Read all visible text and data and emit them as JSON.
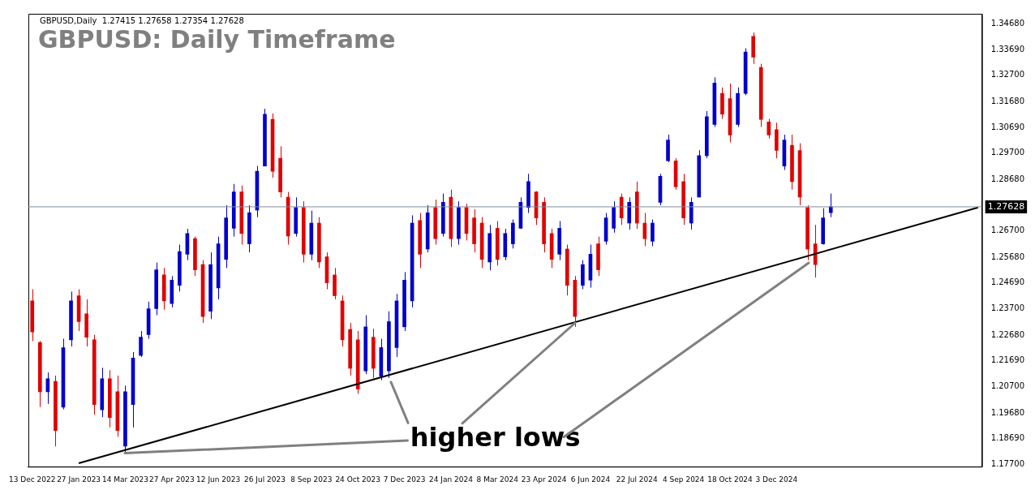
{
  "chart_data": {
    "type": "candlestick",
    "title": "GBPUSD: Daily Timeframe",
    "subtitle": "GBPUSD,Daily  1.27415 1.27658 1.27354 1.27628",
    "annotations": [
      {
        "text": "higher lows",
        "x": "14 Mar 2023",
        "y": 1.1812
      }
    ],
    "categories": [
      "13 Dec 2022",
      null,
      null,
      null,
      null,
      null,
      "27 Jan 2023",
      null,
      null,
      null,
      null,
      null,
      "14 Mar 2023",
      null,
      null,
      null,
      null,
      null,
      "27 Apr 2023",
      null,
      null,
      null,
      null,
      null,
      "12 Jun 2023",
      null,
      null,
      null,
      null,
      null,
      "26 Jul 2023",
      null,
      null,
      null,
      null,
      null,
      "8 Sep 2023",
      null,
      null,
      null,
      null,
      null,
      "24 Oct 2023",
      null,
      null,
      null,
      null,
      null,
      "7 Dec 2023",
      null,
      null,
      null,
      null,
      null,
      "24 Jan 2024",
      null,
      null,
      null,
      null,
      null,
      "8 Mar 2024",
      null,
      null,
      null,
      null,
      null,
      "23 Apr 2024",
      null,
      null,
      null,
      null,
      null,
      "6 Jun 2024",
      null,
      null,
      null,
      null,
      null,
      "22 Jul 2024",
      null,
      null,
      null,
      null,
      null,
      "4 Sep 2024",
      null,
      null,
      null,
      null,
      null,
      "18 Oct 2024",
      null,
      null,
      null,
      null,
      null,
      "3 Dec 2024",
      null,
      null,
      null,
      null,
      null,
      null,
      null,
      null,
      null,
      null,
      null,
      null,
      null,
      null,
      null,
      null,
      null,
      null,
      null,
      null,
      null,
      null,
      null,
      null,
      null,
      null
    ],
    "series": [
      {
        "type": "candlestick",
        "ohlc": [
          [
            1.24,
            1.2445,
            1.2245,
            1.228
          ],
          [
            1.224,
            1.2245,
            1.1991,
            1.205
          ],
          [
            1.205,
            1.2124,
            1.2003,
            1.21
          ],
          [
            1.209,
            1.2112,
            1.1839,
            1.19
          ],
          [
            1.199,
            1.2254,
            1.1982,
            1.222
          ],
          [
            1.225,
            1.2436,
            1.2224,
            1.24
          ],
          [
            1.242,
            1.2445,
            1.2284,
            1.232
          ],
          [
            1.235,
            1.2406,
            1.2224,
            1.226
          ],
          [
            1.225,
            1.2269,
            1.1961,
            1.2
          ],
          [
            1.198,
            1.2142,
            1.1952,
            1.21
          ],
          [
            1.21,
            1.2133,
            1.1912,
            1.195
          ],
          [
            1.205,
            1.2112,
            1.1876,
            1.19
          ],
          [
            1.184,
            1.2073,
            1.1812,
            1.205
          ],
          [
            1.2,
            1.2203,
            1.1912,
            1.218
          ],
          [
            1.219,
            1.2284,
            1.2184,
            1.226
          ],
          [
            1.227,
            1.2397,
            1.2254,
            1.237
          ],
          [
            1.237,
            1.2548,
            1.2345,
            1.252
          ],
          [
            1.25,
            1.2527,
            1.2366,
            1.24
          ],
          [
            1.239,
            1.2496,
            1.2375,
            1.248
          ],
          [
            1.246,
            1.2617,
            1.2436,
            1.259
          ],
          [
            1.258,
            1.2678,
            1.2557,
            1.266
          ],
          [
            1.264,
            1.2648,
            1.2496,
            1.252
          ],
          [
            1.254,
            1.2557,
            1.2315,
            1.234
          ],
          [
            1.236,
            1.2587,
            1.233,
            1.254
          ],
          [
            1.245,
            1.2648,
            1.2406,
            1.262
          ],
          [
            1.256,
            1.2769,
            1.2527,
            1.272
          ],
          [
            1.268,
            1.2851,
            1.2648,
            1.282
          ],
          [
            1.282,
            1.2845,
            1.2617,
            1.266
          ],
          [
            1.262,
            1.2769,
            1.2587,
            1.274
          ],
          [
            1.275,
            1.292,
            1.2723,
            1.29
          ],
          [
            1.292,
            1.3141,
            1.292,
            1.312
          ],
          [
            1.31,
            1.3123,
            1.2875,
            1.29
          ],
          [
            1.295,
            1.2996,
            1.2799,
            1.282
          ],
          [
            1.28,
            1.282,
            1.2617,
            1.265
          ],
          [
            1.266,
            1.2799,
            1.2648,
            1.276
          ],
          [
            1.276,
            1.2784,
            1.2548,
            1.258
          ],
          [
            1.258,
            1.2748,
            1.2557,
            1.27
          ],
          [
            1.27,
            1.2723,
            1.2527,
            1.255
          ],
          [
            1.257,
            1.2587,
            1.2445,
            1.247
          ],
          [
            1.25,
            1.2527,
            1.2406,
            1.242
          ],
          [
            1.24,
            1.2421,
            1.2224,
            1.225
          ],
          [
            1.229,
            1.2315,
            1.2112,
            1.214
          ],
          [
            1.225,
            1.2284,
            1.2042,
            1.206
          ],
          [
            1.213,
            1.2345,
            1.2118,
            1.23
          ],
          [
            1.226,
            1.2293,
            1.2103,
            1.214
          ],
          [
            1.211,
            1.2254,
            1.2094,
            1.222
          ],
          [
            1.213,
            1.236,
            1.2103,
            1.232
          ],
          [
            1.222,
            1.2427,
            1.2184,
            1.24
          ],
          [
            1.23,
            1.2511,
            1.2284,
            1.248
          ],
          [
            1.24,
            1.273,
            1.2375,
            1.27
          ],
          [
            1.271,
            1.2739,
            1.2527,
            1.258
          ],
          [
            1.26,
            1.2769,
            1.2587,
            1.274
          ],
          [
            1.276,
            1.279,
            1.2617,
            1.264
          ],
          [
            1.266,
            1.2814,
            1.2648,
            1.278
          ],
          [
            1.28,
            1.2829,
            1.2608,
            1.264
          ],
          [
            1.264,
            1.2784,
            1.2617,
            1.276
          ],
          [
            1.276,
            1.2775,
            1.2633,
            1.266
          ],
          [
            1.272,
            1.2754,
            1.2587,
            1.262
          ],
          [
            1.27,
            1.2723,
            1.2527,
            1.256
          ],
          [
            1.255,
            1.2693,
            1.2518,
            1.266
          ],
          [
            1.268,
            1.2708,
            1.2536,
            1.256
          ],
          [
            1.257,
            1.2678,
            1.2557,
            1.266
          ],
          [
            1.262,
            1.2714,
            1.2602,
            1.27
          ],
          [
            1.268,
            1.2799,
            1.2678,
            1.278
          ],
          [
            1.276,
            1.289,
            1.2739,
            1.286
          ],
          [
            1.282,
            1.2823,
            1.2693,
            1.272
          ],
          [
            1.278,
            1.2799,
            1.2587,
            1.262
          ],
          [
            1.266,
            1.2678,
            1.2527,
            1.256
          ],
          [
            1.258,
            1.2708,
            1.2557,
            1.268
          ],
          [
            1.26,
            1.2617,
            1.2421,
            1.246
          ],
          [
            1.248,
            1.2496,
            1.23,
            1.234
          ],
          [
            1.246,
            1.2557,
            1.2445,
            1.254
          ],
          [
            1.248,
            1.2617,
            1.2451,
            1.258
          ],
          [
            1.262,
            1.2648,
            1.2496,
            1.252
          ],
          [
            1.263,
            1.2739,
            1.2617,
            1.272
          ],
          [
            1.268,
            1.2784,
            1.2663,
            1.276
          ],
          [
            1.28,
            1.2814,
            1.2693,
            1.272
          ],
          [
            1.27,
            1.2799,
            1.2675,
            1.278
          ],
          [
            1.282,
            1.286,
            1.2678,
            1.27
          ],
          [
            1.27,
            1.2739,
            1.2611,
            1.264
          ],
          [
            1.263,
            1.2714,
            1.2611,
            1.27
          ],
          [
            1.278,
            1.289,
            1.2769,
            1.288
          ],
          [
            1.294,
            1.3041,
            1.2935,
            1.302
          ],
          [
            1.294,
            1.295,
            1.2829,
            1.284
          ],
          [
            1.286,
            1.289,
            1.2693,
            1.272
          ],
          [
            1.27,
            1.2799,
            1.2675,
            1.278
          ],
          [
            1.28,
            1.2981,
            1.2799,
            1.296
          ],
          [
            1.296,
            1.3132,
            1.295,
            1.311
          ],
          [
            1.308,
            1.3262,
            1.3071,
            1.324
          ],
          [
            1.32,
            1.3223,
            1.3102,
            1.312
          ],
          [
            1.318,
            1.3238,
            1.3011,
            1.304
          ],
          [
            1.308,
            1.3223,
            1.3071,
            1.32
          ],
          [
            1.32,
            1.3374,
            1.3193,
            1.336
          ],
          [
            1.342,
            1.3435,
            1.3314,
            1.334
          ],
          [
            1.33,
            1.3314,
            1.3071,
            1.31
          ],
          [
            1.309,
            1.3102,
            1.3026,
            1.304
          ],
          [
            1.306,
            1.3087,
            1.295,
            1.298
          ],
          [
            1.292,
            1.3041,
            1.2905,
            1.302
          ],
          [
            1.3,
            1.3041,
            1.2829,
            1.286
          ],
          [
            1.298,
            1.3008,
            1.2769,
            1.28
          ],
          [
            1.276,
            1.2769,
            1.2557,
            1.26
          ],
          [
            1.262,
            1.2693,
            1.249,
            1.254
          ],
          [
            1.262,
            1.2757,
            1.2617,
            1.272
          ],
          [
            1.274,
            1.2814,
            1.2723,
            1.27628
          ],
          null,
          null,
          null,
          null,
          null,
          null,
          null,
          null,
          null,
          null,
          null,
          null,
          null,
          null,
          null,
          null,
          null,
          null,
          null
        ]
      },
      {
        "type": "line",
        "color": "#000000",
        "values": [
          null,
          null,
          null,
          null,
          null,
          null,
          1.1774,
          null,
          null,
          null,
          null,
          null,
          null,
          null,
          null,
          null,
          null,
          null,
          null,
          null,
          null,
          null,
          null,
          null,
          null,
          null,
          null,
          null,
          null,
          null,
          null,
          null,
          null,
          null,
          null,
          null,
          null,
          null,
          null,
          null,
          null,
          null,
          null,
          null,
          null,
          null,
          null,
          null,
          null,
          null,
          null,
          null,
          null,
          null,
          null,
          null,
          null,
          null,
          null,
          null,
          null,
          null,
          null,
          null,
          null,
          null,
          null,
          null,
          null,
          null,
          null,
          null,
          null,
          null,
          null,
          null,
          null,
          null,
          null,
          null,
          null,
          null,
          null,
          null,
          null,
          null,
          null,
          null,
          null,
          null,
          null,
          null,
          null,
          null,
          null,
          null,
          null,
          null,
          null,
          null,
          null,
          null,
          null,
          null,
          null,
          null,
          null,
          null,
          null,
          null,
          null,
          null,
          null,
          null,
          null,
          null,
          null,
          null,
          null,
          null,
          null,
          null,
          1.276
        ]
      }
    ],
    "ylim": [
      1.1761,
      1.3507
    ],
    "yticks": [
      {
        "value": 1.177,
        "label": "1.17700"
      },
      {
        "value": 1.1869,
        "label": "1.18690"
      },
      {
        "value": 1.1968,
        "label": "1.19680"
      },
      {
        "value": 1.207,
        "label": "1.20700"
      },
      {
        "value": 1.2169,
        "label": "1.21690"
      },
      {
        "value": 1.2268,
        "label": "1.22680"
      },
      {
        "value": 1.237,
        "label": "1.23700"
      },
      {
        "value": 1.2469,
        "label": "1.24690"
      },
      {
        "value": 1.2568,
        "label": "1.25680"
      },
      {
        "value": 1.267,
        "label": "1.26700"
      },
      {
        "value": 1.2868,
        "label": "1.28680"
      },
      {
        "value": 1.297,
        "label": "1.29700"
      },
      {
        "value": 1.3069,
        "label": "1.30690"
      },
      {
        "value": 1.3168,
        "label": "1.31680"
      },
      {
        "value": 1.327,
        "label": "1.32700"
      },
      {
        "value": 1.3369,
        "label": "1.33690"
      },
      {
        "value": 1.3468,
        "label": "1.34680"
      }
    ],
    "ref_lines": [
      {
        "axis": "y",
        "value": 1.27628,
        "label": "1.27628",
        "color": "#7f8c9a"
      }
    ],
    "grid": false,
    "legend": false
  }
}
